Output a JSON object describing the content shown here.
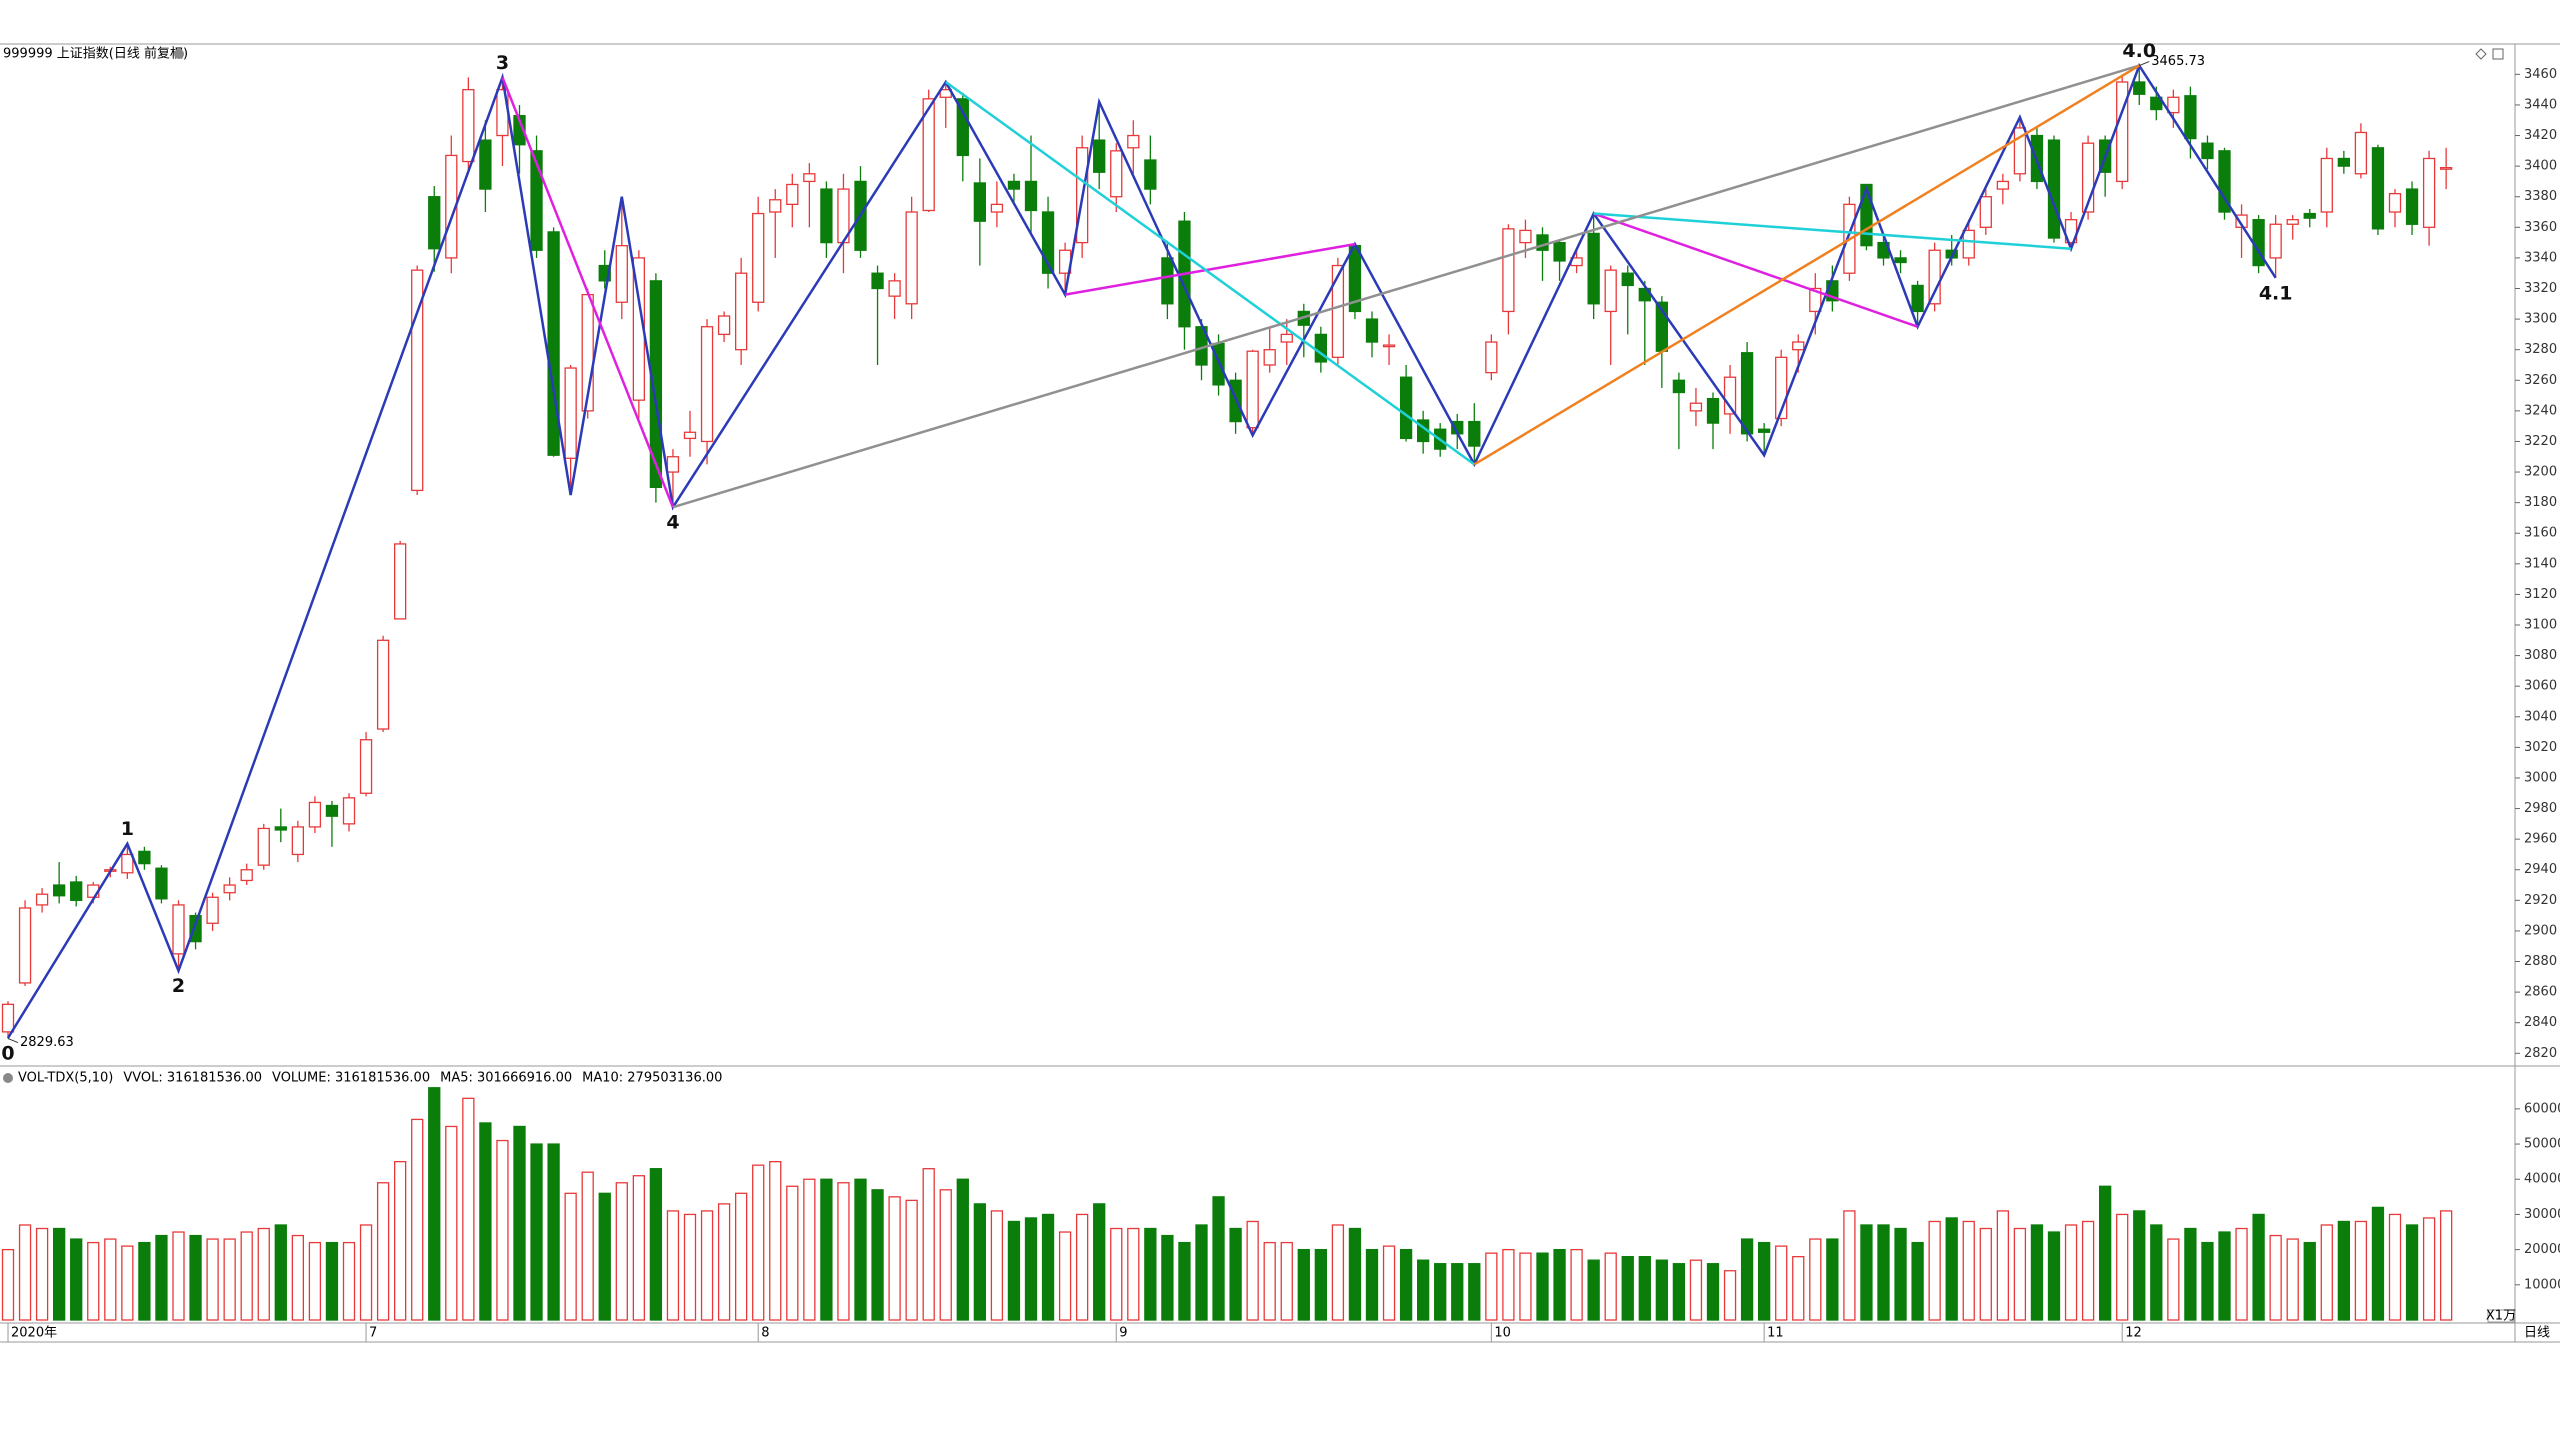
{
  "chart_data": {
    "type": "candlestick",
    "title": "999999 上证指数(日线 前复权)",
    "up_color": "#e8393a",
    "down_color": "#0b7d0b",
    "ylim": [
      2813,
      3472
    ],
    "yticks": [
      2820,
      2840,
      2860,
      2880,
      2900,
      2920,
      2940,
      2960,
      2980,
      3000,
      3020,
      3040,
      3060,
      3080,
      3100,
      3120,
      3140,
      3160,
      3180,
      3200,
      3220,
      3240,
      3260,
      3280,
      3300,
      3320,
      3340,
      3360,
      3380,
      3400,
      3420,
      3440,
      3460
    ],
    "vol_ylim": [
      0,
      66500
    ],
    "vol_yticks": [
      10000,
      20000,
      30000,
      40000,
      50000,
      60000
    ],
    "vol_unit": "X1万",
    "period": "日线",
    "volume_legend": [
      {
        "text": "VOL-TDX(5,10)",
        "color": "#000000"
      },
      {
        "text": "VVOL: 316181536.00",
        "color": "#000000"
      },
      {
        "text": "VOLUME: 316181536.00",
        "color": "#d020d0"
      },
      {
        "text": "MA5: 301666916.00",
        "color": "#d020d0"
      },
      {
        "text": "MA10: 279503136.00",
        "color": "#888888"
      }
    ],
    "xticks": [
      {
        "value": 0,
        "label": "2020年"
      },
      {
        "value": 21,
        "label": "7"
      },
      {
        "value": 44,
        "label": "8"
      },
      {
        "value": 65,
        "label": "9"
      },
      {
        "value": 87,
        "label": "10"
      },
      {
        "value": 103,
        "label": "11"
      },
      {
        "value": 124,
        "label": "12"
      }
    ],
    "ohlc": [
      [
        2834,
        2854,
        2829.63,
        2852
      ],
      [
        2866,
        2920,
        2864,
        2915
      ],
      [
        2917,
        2928,
        2912,
        2924
      ],
      [
        2930,
        2945,
        2918,
        2923
      ],
      [
        2932,
        2936,
        2916,
        2920
      ],
      [
        2922,
        2932,
        2918,
        2930
      ],
      [
        2940,
        2942,
        2935,
        2940
      ],
      [
        2938,
        2957,
        2934,
        2950
      ],
      [
        2952,
        2955,
        2940,
        2944
      ],
      [
        2941,
        2943,
        2918,
        2921
      ],
      [
        2885,
        2920,
        2874,
        2917
      ],
      [
        2910,
        2912,
        2888,
        2893
      ],
      [
        2905,
        2925,
        2900,
        2922
      ],
      [
        2925,
        2935,
        2920,
        2930
      ],
      [
        2933,
        2944,
        2930,
        2940
      ],
      [
        2943,
        2970,
        2940,
        2967
      ],
      [
        2968,
        2980,
        2958,
        2966
      ],
      [
        2950,
        2972,
        2945,
        2968
      ],
      [
        2968,
        2988,
        2964,
        2984
      ],
      [
        2982,
        2985,
        2955,
        2975
      ],
      [
        2970,
        2990,
        2965,
        2987
      ],
      [
        2990,
        3030,
        2988,
        3025
      ],
      [
        3032,
        3093,
        3030,
        3090
      ],
      [
        3104,
        3155,
        3104,
        3153
      ],
      [
        3188,
        3335,
        3185,
        3332
      ],
      [
        3380,
        3387,
        3331,
        3346
      ],
      [
        3340,
        3420,
        3330,
        3407
      ],
      [
        3403,
        3458,
        3395,
        3450
      ],
      [
        3417,
        3430,
        3370,
        3385
      ],
      [
        3420,
        3458,
        3400,
        3450
      ],
      [
        3433,
        3440,
        3395,
        3414
      ],
      [
        3410,
        3420,
        3340,
        3345
      ],
      [
        3357,
        3360,
        3210,
        3211
      ],
      [
        3209,
        3270,
        3185,
        3268
      ],
      [
        3240,
        3320,
        3235,
        3316
      ],
      [
        3335,
        3345,
        3320,
        3325
      ],
      [
        3311,
        3380,
        3300,
        3348
      ],
      [
        3247,
        3345,
        3235,
        3340
      ],
      [
        3325,
        3330,
        3180,
        3190
      ],
      [
        3200,
        3215,
        3177,
        3210
      ],
      [
        3222,
        3240,
        3210,
        3226
      ],
      [
        3220,
        3300,
        3205,
        3295
      ],
      [
        3290,
        3305,
        3285,
        3302
      ],
      [
        3280,
        3340,
        3270,
        3330
      ],
      [
        3311,
        3380,
        3305,
        3369
      ],
      [
        3370,
        3385,
        3340,
        3378
      ],
      [
        3375,
        3395,
        3360,
        3388
      ],
      [
        3390,
        3402,
        3360,
        3395
      ],
      [
        3385,
        3390,
        3340,
        3350
      ],
      [
        3350,
        3395,
        3330,
        3385
      ],
      [
        3390,
        3400,
        3340,
        3345
      ],
      [
        3330,
        3335,
        3270,
        3320
      ],
      [
        3315,
        3330,
        3300,
        3325
      ],
      [
        3310,
        3380,
        3300,
        3370
      ],
      [
        3371,
        3450,
        3370,
        3444
      ],
      [
        3445,
        3455,
        3425,
        3450
      ],
      [
        3444,
        3448,
        3390,
        3407
      ],
      [
        3389,
        3405,
        3335,
        3364
      ],
      [
        3370,
        3390,
        3360,
        3375
      ],
      [
        3390,
        3395,
        3375,
        3385
      ],
      [
        3390,
        3420,
        3355,
        3371
      ],
      [
        3370,
        3380,
        3320,
        3330
      ],
      [
        3330,
        3350,
        3316,
        3345
      ],
      [
        3350,
        3420,
        3340,
        3412
      ],
      [
        3417,
        3442,
        3385,
        3396
      ],
      [
        3380,
        3415,
        3370,
        3410
      ],
      [
        3412,
        3430,
        3395,
        3420
      ],
      [
        3404,
        3420,
        3375,
        3385
      ],
      [
        3340,
        3350,
        3300,
        3310
      ],
      [
        3364,
        3370,
        3280,
        3295
      ],
      [
        3295,
        3300,
        3260,
        3270
      ],
      [
        3284,
        3290,
        3250,
        3257
      ],
      [
        3260,
        3265,
        3225,
        3233
      ],
      [
        3229,
        3280,
        3224,
        3279
      ],
      [
        3270,
        3295,
        3265,
        3280
      ],
      [
        3285,
        3300,
        3270,
        3290
      ],
      [
        3305,
        3310,
        3275,
        3296
      ],
      [
        3290,
        3295,
        3265,
        3272
      ],
      [
        3275,
        3340,
        3270,
        3335
      ],
      [
        3348,
        3349,
        3300,
        3305
      ],
      [
        3300,
        3305,
        3275,
        3285
      ],
      [
        3282,
        3290,
        3270,
        3283
      ],
      [
        3262,
        3270,
        3220,
        3222
      ],
      [
        3234,
        3240,
        3212,
        3220
      ],
      [
        3228,
        3232,
        3210,
        3215
      ],
      [
        3233,
        3238,
        3215,
        3225
      ],
      [
        3233,
        3245,
        3205,
        3217
      ],
      [
        3265,
        3290,
        3260,
        3285
      ],
      [
        3305,
        3362,
        3290,
        3359
      ],
      [
        3350,
        3365,
        3340,
        3358
      ],
      [
        3355,
        3360,
        3325,
        3345
      ],
      [
        3350,
        3352,
        3325,
        3338
      ],
      [
        3335,
        3345,
        3330,
        3340
      ],
      [
        3356,
        3369,
        3300,
        3310
      ],
      [
        3305,
        3335,
        3270,
        3332
      ],
      [
        3330,
        3335,
        3290,
        3322
      ],
      [
        3320,
        3325,
        3270,
        3312
      ],
      [
        3311,
        3315,
        3255,
        3279
      ],
      [
        3260,
        3265,
        3215,
        3252
      ],
      [
        3240,
        3255,
        3230,
        3245
      ],
      [
        3248,
        3252,
        3215,
        3232
      ],
      [
        3238,
        3270,
        3225,
        3262
      ],
      [
        3278,
        3285,
        3220,
        3225
      ],
      [
        3228,
        3232,
        3211,
        3226
      ],
      [
        3235,
        3280,
        3230,
        3275
      ],
      [
        3280,
        3290,
        3265,
        3285
      ],
      [
        3305,
        3330,
        3290,
        3320
      ],
      [
        3325,
        3335,
        3305,
        3312
      ],
      [
        3330,
        3380,
        3325,
        3375
      ],
      [
        3388,
        3388,
        3345,
        3348
      ],
      [
        3350,
        3355,
        3335,
        3340
      ],
      [
        3340,
        3345,
        3330,
        3337
      ],
      [
        3322,
        3325,
        3295,
        3305
      ],
      [
        3310,
        3350,
        3305,
        3345
      ],
      [
        3345,
        3355,
        3335,
        3340
      ],
      [
        3340,
        3365,
        3335,
        3358
      ],
      [
        3360,
        3385,
        3355,
        3380
      ],
      [
        3385,
        3395,
        3375,
        3390
      ],
      [
        3395,
        3432,
        3390,
        3425
      ],
      [
        3420,
        3425,
        3385,
        3390
      ],
      [
        3417,
        3420,
        3350,
        3353
      ],
      [
        3350,
        3370,
        3346,
        3365
      ],
      [
        3370,
        3420,
        3365,
        3415
      ],
      [
        3417,
        3420,
        3380,
        3396
      ],
      [
        3390,
        3460,
        3385,
        3455
      ],
      [
        3455,
        3465.73,
        3440,
        3447
      ],
      [
        3445,
        3452,
        3430,
        3437
      ],
      [
        3435,
        3450,
        3425,
        3445
      ],
      [
        3446,
        3452,
        3405,
        3418
      ],
      [
        3415,
        3420,
        3398,
        3405
      ],
      [
        3410,
        3412,
        3365,
        3370
      ],
      [
        3360,
        3375,
        3340,
        3368
      ],
      [
        3365,
        3368,
        3330,
        3335
      ],
      [
        3340,
        3368,
        3327,
        3362
      ],
      [
        3362,
        3368,
        3352,
        3365
      ],
      [
        3369,
        3372,
        3360,
        3366
      ],
      [
        3370,
        3412,
        3360,
        3405
      ],
      [
        3405,
        3410,
        3395,
        3400
      ],
      [
        3395,
        3428,
        3392,
        3422
      ],
      [
        3412,
        3414,
        3355,
        3359
      ],
      [
        3370,
        3385,
        3360,
        3382
      ],
      [
        3385,
        3390,
        3355,
        3362
      ],
      [
        3360,
        3410,
        3348,
        3405
      ],
      [
        3398,
        3412,
        3385,
        3399
      ]
    ],
    "volume": [
      20000,
      27000,
      26000,
      26000,
      23000,
      22000,
      23000,
      21000,
      22000,
      24000,
      25000,
      24000,
      23000,
      23000,
      25000,
      26000,
      27000,
      24000,
      22000,
      22000,
      22000,
      27000,
      39000,
      45000,
      57000,
      66000,
      55000,
      63000,
      56000,
      51000,
      55000,
      50000,
      50000,
      36000,
      42000,
      36000,
      39000,
      41000,
      43000,
      31000,
      30000,
      31000,
      33000,
      36000,
      44000,
      45000,
      38000,
      40000,
      40000,
      39000,
      40000,
      37000,
      35000,
      34000,
      43000,
      37000,
      40000,
      33000,
      31000,
      28000,
      29000,
      30000,
      25000,
      30000,
      33000,
      26000,
      26000,
      26000,
      24000,
      22000,
      27000,
      35000,
      26000,
      28000,
      22000,
      22000,
      20000,
      20000,
      27000,
      26000,
      20000,
      21000,
      20000,
      17000,
      16000,
      16000,
      16000,
      19000,
      20000,
      19000,
      19000,
      20000,
      20000,
      17000,
      19000,
      18000,
      18000,
      17000,
      16000,
      17000,
      16000,
      14000,
      23000,
      22000,
      21000,
      18000,
      23000,
      23000,
      31000,
      27000,
      27000,
      26000,
      22000,
      28000,
      29000,
      28000,
      26000,
      31000,
      26000,
      27000,
      25000,
      27000,
      28000,
      38000,
      30000,
      31000,
      27000,
      23000,
      26000,
      22000,
      25000,
      26000,
      30000,
      24000,
      23000,
      22000,
      27000,
      28000,
      28000,
      32000,
      30000,
      27000,
      29000,
      31000
    ],
    "extremes": [
      {
        "x": 0,
        "value": 2829.63
      },
      {
        "x": 125,
        "value": 3465.73
      }
    ],
    "overlays": [
      {
        "color": "#2b3bb8",
        "points": [
          [
            0,
            2830
          ],
          [
            7,
            2957
          ],
          [
            10,
            2874
          ],
          [
            29,
            3458
          ],
          [
            33,
            3185
          ],
          [
            36,
            3380
          ],
          [
            39,
            3177
          ],
          [
            55,
            3455
          ],
          [
            62,
            3316
          ],
          [
            64,
            3442
          ],
          [
            73,
            3224
          ],
          [
            79,
            3349
          ],
          [
            86,
            3205
          ],
          [
            93,
            3369
          ],
          [
            103,
            3211
          ],
          [
            109,
            3385
          ],
          [
            112,
            3295
          ],
          [
            118,
            3432
          ],
          [
            121,
            3346
          ],
          [
            125,
            3465.73
          ],
          [
            133,
            3327
          ]
        ]
      },
      {
        "color": "#e020e0",
        "points": [
          [
            29,
            3458
          ],
          [
            39,
            3177
          ]
        ]
      },
      {
        "color": "#e020e0",
        "points": [
          [
            62,
            3316
          ],
          [
            79,
            3349
          ]
        ]
      },
      {
        "color": "#e020e0",
        "points": [
          [
            93,
            3369
          ],
          [
            112,
            3295
          ]
        ]
      },
      {
        "color": "#20d0d8",
        "points": [
          [
            55,
            3455
          ],
          [
            86,
            3205
          ]
        ]
      },
      {
        "color": "#20d0d8",
        "points": [
          [
            93,
            3369
          ],
          [
            121,
            3346
          ]
        ]
      },
      {
        "color": "#909090",
        "points": [
          [
            39,
            3177
          ],
          [
            125,
            3465.73
          ]
        ]
      },
      {
        "color": "#f08020",
        "points": [
          [
            86,
            3205
          ],
          [
            125,
            3465.73
          ]
        ]
      }
    ],
    "waves": [
      {
        "label": "0",
        "x": 0,
        "y": 2830
      },
      {
        "label": "1",
        "x": 7,
        "y": 2957
      },
      {
        "label": "2",
        "x": 10,
        "y": 2874
      },
      {
        "label": "3",
        "x": 29,
        "y": 3458
      },
      {
        "label": "4",
        "x": 39,
        "y": 3177
      },
      {
        "label": "4.0",
        "x": 125,
        "y": 3465.73
      },
      {
        "label": "4.1",
        "x": 133,
        "y": 3327
      }
    ]
  }
}
